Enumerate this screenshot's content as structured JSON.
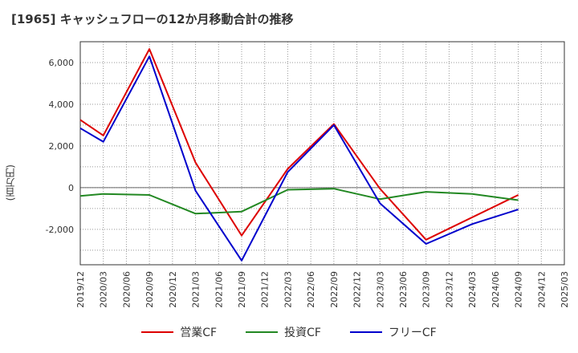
{
  "header": {
    "title": "[1965]  キャッシュフローの12か月移動合計の推移"
  },
  "chart_data": {
    "type": "line",
    "title": "[1965]  キャッシュフローの12か月移動合計の推移",
    "ylabel": "(百万円)",
    "ylim": [
      -3700,
      7000
    ],
    "y_ticks": [
      6000,
      4000,
      2000,
      0,
      -2000
    ],
    "y_tick_labels": [
      "6,000",
      "4,000",
      "2,000",
      "0",
      "-2,000"
    ],
    "x_ticks": [
      "2019/12",
      "2020/03",
      "2020/06",
      "2020/09",
      "2020/12",
      "2021/03",
      "2021/06",
      "2021/09",
      "2021/12",
      "2022/03",
      "2022/06",
      "2022/09",
      "2022/12",
      "2023/03",
      "2023/06",
      "2023/09",
      "2023/12",
      "2024/03",
      "2024/06",
      "2024/09",
      "2024/12",
      "2025/03"
    ],
    "grid": true,
    "legend_position": "bottom",
    "series": [
      {
        "name": "営業CF",
        "color": "#dd0000",
        "x": [
          "2019/12",
          "2020/03",
          "2020/09",
          "2021/03",
          "2021/09",
          "2022/03",
          "2022/09",
          "2023/03",
          "2023/09",
          "2024/09"
        ],
        "values": [
          3250,
          2500,
          6650,
          1200,
          -2300,
          900,
          3050,
          -50,
          -2500,
          -350
        ]
      },
      {
        "name": "投資CF",
        "color": "#228822",
        "x": [
          "2019/12",
          "2020/03",
          "2020/09",
          "2021/03",
          "2021/09",
          "2022/03",
          "2022/09",
          "2023/03",
          "2023/09",
          "2024/03",
          "2024/09"
        ],
        "values": [
          -400,
          -300,
          -350,
          -1250,
          -1150,
          -100,
          -50,
          -550,
          -200,
          -300,
          -600
        ]
      },
      {
        "name": "フリーCF",
        "color": "#0000cc",
        "x": [
          "2019/12",
          "2020/03",
          "2020/09",
          "2021/03",
          "2021/09",
          "2022/03",
          "2022/09",
          "2023/03",
          "2023/09",
          "2024/03",
          "2024/09"
        ],
        "values": [
          2850,
          2200,
          6300,
          -150,
          -3500,
          750,
          3000,
          -750,
          -2700,
          -1750,
          -1050
        ]
      }
    ]
  }
}
